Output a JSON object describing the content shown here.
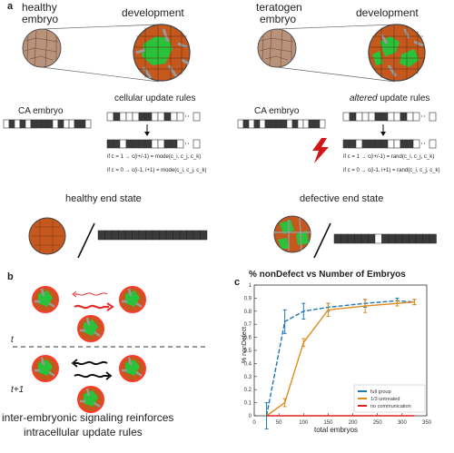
{
  "panel_a": {
    "label": "a",
    "healthy": {
      "title_line1": "healthy",
      "title_line2": "embryo",
      "dev_title": "development",
      "ca_label": "CA embryo",
      "rules_title": "cellular update rules",
      "rule1": "if c = 1 → c(i+/-1) = mode(c_i, c_j, c_k)",
      "rule2": "if c = 0 → c(i-1, i+1) = mode(c_i, c_j, c_k)",
      "end_title": "healthy end state"
    },
    "teratogen": {
      "title_line1": "teratogen",
      "title_line2": "embryo",
      "dev_title": "development",
      "ca_label": "CA embryo",
      "rules_prefix": "altered",
      "rules_suffix": " update rules",
      "rule1": "if c = 1 → c(i+/-1) = rand(c_i, c_j, c_k)",
      "rule2": "if c = 0 → c(i-1, i+1) = rand(c_i, c_j, c_k)",
      "end_title": "defective end state"
    },
    "strip_healthy_pattern": [
      0,
      1,
      0,
      1,
      0,
      1,
      1,
      1,
      1,
      0,
      1,
      0,
      0,
      1,
      1,
      0
    ],
    "strip_teratogen_pattern": [
      0,
      1,
      0,
      1,
      0,
      1,
      1,
      1,
      1,
      0,
      1,
      0,
      0,
      1,
      1,
      0
    ],
    "top_rule_pattern": [
      0,
      1,
      0,
      0,
      0,
      1,
      1,
      0,
      0,
      1,
      0,
      0
    ],
    "bottom_rule_pattern": [
      1,
      1,
      0,
      1,
      1,
      1,
      1,
      0,
      0,
      1,
      1,
      0
    ],
    "colors": {
      "brown": "#c5581c",
      "green": "#29c23a",
      "dark_cell": "#3a3a3a",
      "tan": "#b9927a",
      "bolt": "#d01818"
    }
  },
  "panel_b": {
    "label": "b",
    "time_t": "t",
    "time_t1": "t+1",
    "caption_line1": "inter-embryonic signaling reinforces",
    "caption_line2": "intracellular update rules"
  },
  "panel_c": {
    "label": "c"
  },
  "chart_data": {
    "type": "line",
    "title": "% nonDefect vs Number of Embryos",
    "xlabel": "total embryos",
    "ylabel": "% nonDefect",
    "xlim": [
      0,
      350
    ],
    "ylim": [
      0,
      1
    ],
    "xticks": [
      0,
      50,
      100,
      150,
      200,
      250,
      300,
      350
    ],
    "yticks": [
      0,
      0.1,
      0.2,
      0.3,
      0.4,
      0.5,
      0.6,
      0.7,
      0.8,
      0.9,
      1
    ],
    "legend_position": "bottom-right",
    "series": [
      {
        "name": "full group",
        "color": "#1f77b4",
        "dash": true,
        "x": [
          25,
          62,
          100,
          150,
          225,
          290,
          325
        ],
        "y": [
          0.0,
          0.72,
          0.8,
          0.83,
          0.86,
          0.88,
          0.87
        ],
        "err": [
          0.1,
          0.09,
          0.06,
          0.03,
          0.03,
          0.02,
          0.02
        ]
      },
      {
        "name": "1/3 untreated",
        "color": "#e08a1a",
        "dash": false,
        "x": [
          25,
          62,
          100,
          150,
          225,
          290,
          325
        ],
        "y": [
          0.0,
          0.1,
          0.56,
          0.81,
          0.84,
          0.86,
          0.87
        ],
        "err": [
          0.0,
          0.03,
          0.03,
          0.05,
          0.05,
          0.02,
          0.02
        ]
      },
      {
        "name": "no communication",
        "color": "#e02020",
        "dash": false,
        "x": [
          25,
          62,
          100,
          150,
          225,
          290,
          325
        ],
        "y": [
          0.0,
          0.0,
          0.0,
          0.0,
          0.0,
          0.0,
          0.0
        ],
        "err": [
          0,
          0,
          0,
          0,
          0,
          0,
          0
        ]
      }
    ]
  }
}
